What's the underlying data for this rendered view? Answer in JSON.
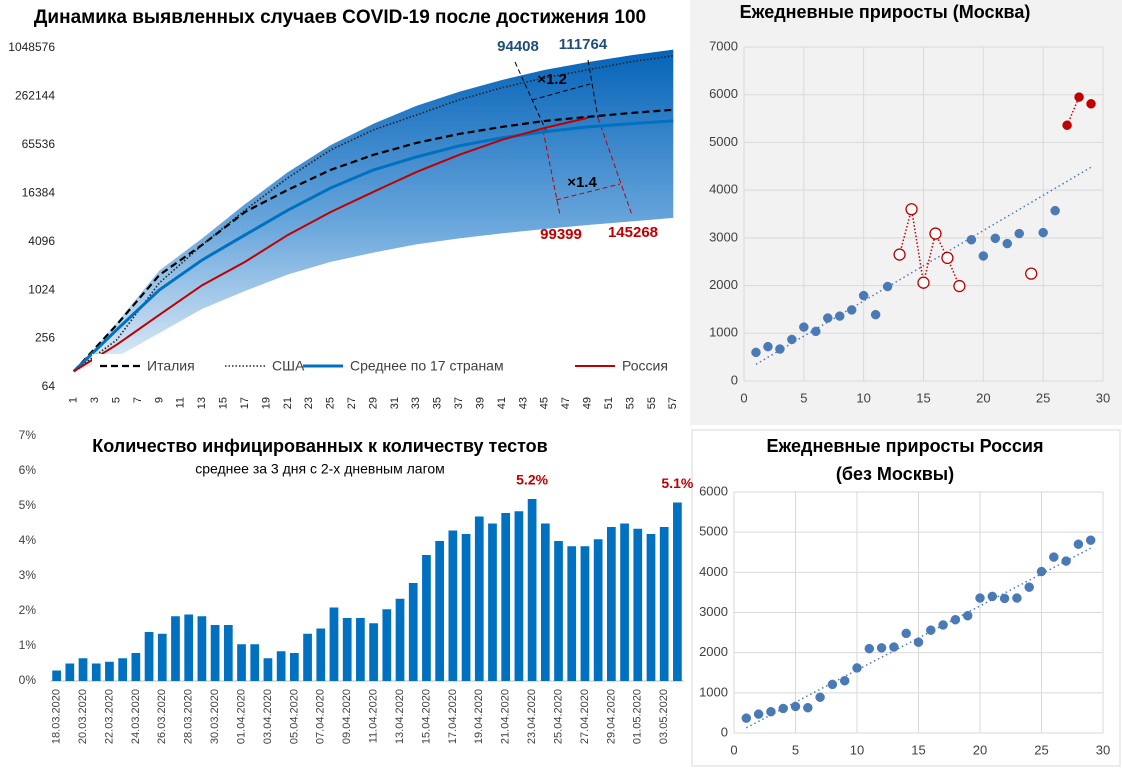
{
  "chart_data": [
    {
      "type": "line",
      "title": "Динамика выявленных случаев COVID-19 после достижения 100",
      "yscale": "log",
      "x": [
        1,
        5,
        9,
        13,
        17,
        21,
        25,
        29,
        33,
        37,
        41,
        45,
        49,
        53,
        57
      ],
      "xlim": [
        0,
        58
      ],
      "xticks": [
        1,
        3,
        5,
        7,
        9,
        11,
        13,
        15,
        17,
        19,
        21,
        23,
        25,
        27,
        29,
        31,
        33,
        35,
        37,
        39,
        41,
        43,
        45,
        47,
        49,
        51,
        53,
        55,
        57
      ],
      "ylim": [
        64,
        1048576
      ],
      "yticks": [
        64,
        256,
        1024,
        4096,
        16384,
        65536,
        262144,
        1048576
      ],
      "band": {
        "upper": [
          100,
          400,
          1800,
          4500,
          12000,
          30000,
          65000,
          120000,
          200000,
          300000,
          420000,
          560000,
          700000,
          850000,
          1000000
        ],
        "lower": [
          100,
          150,
          300,
          600,
          1000,
          1600,
          2300,
          3000,
          3800,
          4500,
          5200,
          5900,
          6600,
          7300,
          8100
        ]
      },
      "series": [
        {
          "name": "Италия",
          "color": "#000000",
          "dash": "dashed",
          "width": 2.2,
          "values": [
            100,
            378,
            1580,
            3740,
            9600,
            18100,
            32000,
            49300,
            69300,
            89600,
            109600,
            130000,
            146000,
            163000,
            179000
          ]
        },
        {
          "name": "США",
          "color": "#222222",
          "dash": "dotted",
          "width": 1.6,
          "values": [
            100,
            245,
            1260,
            3740,
            10100,
            25500,
            56700,
            100700,
            154000,
            238000,
            336000,
            447000,
            561000,
            706000,
            840000
          ]
        },
        {
          "name": "Среднее по 17 странам",
          "color": "#0070c0",
          "dash": "solid",
          "width": 3,
          "values": [
            100,
            328,
            1030,
            2430,
            4970,
            10100,
            19100,
            32000,
            46300,
            63800,
            80200,
            95300,
            109600,
            120000,
            130000
          ]
        },
        {
          "name": "Россия",
          "color": "#c00000",
          "dash": "solid",
          "width": 2,
          "values": [
            100,
            214,
            505,
            1180,
            2300,
            4970,
            9600,
            17100,
            30100,
            49300,
            75800,
            106600,
            142000,
            null,
            null
          ]
        }
      ],
      "annotations": [
        {
          "text": "94408",
          "color": "#1f4e79"
        },
        {
          "text": "111764",
          "color": "#1f4e79"
        },
        {
          "text": "×1.2",
          "color": "#000000"
        },
        {
          "text": "×1.4",
          "color": "#000000"
        },
        {
          "text": "99399",
          "color": "#c00000"
        },
        {
          "text": "145268",
          "color": "#c00000"
        }
      ]
    },
    {
      "type": "scatter",
      "title": "Ежедневные приросты (Москва)",
      "xlim": [
        0,
        30
      ],
      "xticks": [
        0,
        5,
        10,
        15,
        20,
        25,
        30
      ],
      "ylim": [
        0,
        7000
      ],
      "yticks": [
        0,
        1000,
        2000,
        3000,
        4000,
        5000,
        6000,
        7000
      ],
      "grid": true,
      "series": [
        {
          "color": "#4a7ab5",
          "marker": "filled",
          "connect": false,
          "x": [
            1,
            2,
            3,
            4,
            5,
            6,
            7,
            8,
            9,
            10,
            11,
            12,
            19,
            20,
            21,
            22,
            23,
            25,
            26
          ],
          "values": [
            600,
            720,
            670,
            870,
            1130,
            1040,
            1320,
            1360,
            1490,
            1790,
            1390,
            1980,
            2960,
            2620,
            2990,
            2880,
            3090,
            3110,
            3570
          ]
        },
        {
          "color": "#c00000",
          "marker": "open",
          "connect": true,
          "x": [
            13,
            14,
            15,
            16,
            17,
            18
          ],
          "values": [
            2650,
            3600,
            2060,
            3090,
            2580,
            1990
          ]
        },
        {
          "color": "#c00000",
          "marker": "open",
          "connect": false,
          "x": [
            24
          ],
          "values": [
            2250
          ]
        },
        {
          "color": "#c00000",
          "marker": "filled",
          "connect": true,
          "x": [
            27,
            28
          ],
          "values": [
            5360,
            5950
          ]
        },
        {
          "color": "#c00000",
          "marker": "filled",
          "connect": false,
          "x": [
            29
          ],
          "values": [
            5810
          ]
        }
      ],
      "trend": {
        "color": "#4a7ab5",
        "x": [
          1,
          29
        ],
        "values": [
          350,
          4480
        ]
      }
    },
    {
      "type": "bar",
      "title": "Количество инфицированных к количеству тестов",
      "subtitle": "среднее за 3 дня с 2-х дневным лагом",
      "color": "#0070c0",
      "categories": [
        "18.03.2020",
        null,
        "20.03.2020",
        null,
        "22.03.2020",
        null,
        "24.03.2020",
        null,
        "26.03.2020",
        null,
        "28.03.2020",
        null,
        "30.03.2020",
        null,
        "01.04.2020",
        null,
        "03.04.2020",
        null,
        "05.04.2020",
        null,
        "07.04.2020",
        null,
        "09.04.2020",
        null,
        "11.04.2020",
        null,
        "13.04.2020",
        null,
        "15.04.2020",
        null,
        "17.04.2020",
        null,
        "19.04.2020",
        null,
        "21.04.2020",
        null,
        "23.04.2020",
        null,
        "25.04.2020",
        null,
        "27.04.2020",
        null,
        "29.04.2020",
        null,
        "01.05.2020",
        null,
        "03.05.2020",
        null
      ],
      "values": [
        0.3,
        0.5,
        0.65,
        0.5,
        0.55,
        0.65,
        0.8,
        1.4,
        1.35,
        1.85,
        1.9,
        1.85,
        1.6,
        1.6,
        1.05,
        1.05,
        0.65,
        0.85,
        0.8,
        1.35,
        1.5,
        2.1,
        1.8,
        1.8,
        1.65,
        2.05,
        2.35,
        2.8,
        3.6,
        4.0,
        4.3,
        4.2,
        4.7,
        4.5,
        4.8,
        4.85,
        5.2,
        4.5,
        4.0,
        3.85,
        3.85,
        4.05,
        4.4,
        4.5,
        4.35,
        4.2,
        4.4,
        5.1
      ],
      "value_labels": [
        null,
        null,
        null,
        null,
        null,
        null,
        null,
        null,
        null,
        null,
        null,
        null,
        null,
        null,
        null,
        null,
        null,
        null,
        null,
        null,
        null,
        null,
        null,
        null,
        null,
        null,
        null,
        null,
        null,
        null,
        null,
        null,
        null,
        null,
        null,
        null,
        "5.2%",
        null,
        null,
        null,
        null,
        null,
        null,
        null,
        null,
        null,
        null,
        "5.1%"
      ],
      "value_label_color": "#c00000",
      "ylim": [
        0,
        7
      ],
      "yticks": [
        {
          "value": 0,
          "label": "0%"
        },
        {
          "value": 1,
          "label": "1%"
        },
        {
          "value": 2,
          "label": "2%"
        },
        {
          "value": 3,
          "label": "3%"
        },
        {
          "value": 4,
          "label": "4%"
        },
        {
          "value": 5,
          "label": "5%"
        },
        {
          "value": 6,
          "label": "6%"
        },
        {
          "value": 7,
          "label": "7%"
        }
      ],
      "grid": false
    },
    {
      "type": "scatter",
      "title": [
        "Ежедневные приросты Россия",
        "(без Москвы)"
      ],
      "xlim": [
        0,
        30
      ],
      "xticks": [
        0,
        5,
        10,
        15,
        20,
        25,
        30
      ],
      "ylim": [
        0,
        6000
      ],
      "yticks": [
        0,
        1000,
        2000,
        3000,
        4000,
        5000,
        6000
      ],
      "grid": true,
      "series": [
        {
          "color": "#4a7ab5",
          "marker": "filled",
          "connect": false,
          "x": [
            1,
            2,
            3,
            4,
            5,
            6,
            7,
            8,
            9,
            10,
            11,
            12,
            13,
            14,
            15,
            16,
            17,
            18,
            19,
            20,
            21,
            22,
            23,
            24,
            25,
            26,
            27,
            28,
            29
          ],
          "values": [
            370,
            470,
            530,
            610,
            660,
            630,
            890,
            1210,
            1300,
            1620,
            2100,
            2120,
            2140,
            2480,
            2260,
            2560,
            2690,
            2820,
            2920,
            3360,
            3400,
            3350,
            3360,
            3630,
            4020,
            4380,
            4280,
            4700,
            4800
          ]
        }
      ],
      "trend": {
        "color": "#4a7ab5",
        "x": [
          1,
          29
        ],
        "values": [
          130,
          4600
        ]
      }
    }
  ]
}
